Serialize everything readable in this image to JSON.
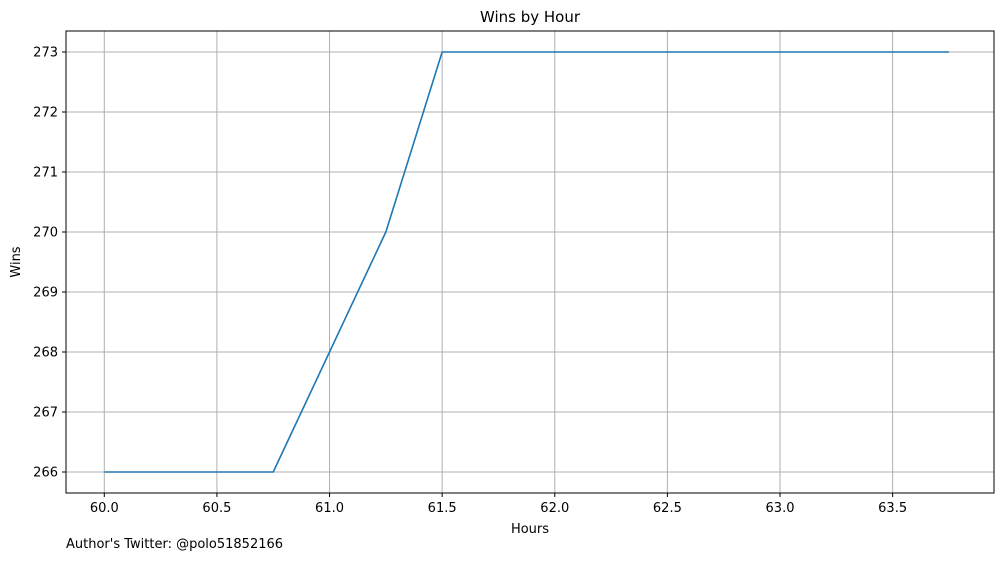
{
  "chart_data": {
    "type": "line",
    "title": "Wins by Hour",
    "xlabel": "Hours",
    "ylabel": "Wins",
    "xlim": [
      59.83,
      63.95
    ],
    "ylim": [
      265.65,
      273.35
    ],
    "xticks": [
      60.0,
      60.5,
      61.0,
      61.5,
      62.0,
      62.5,
      63.0,
      63.5
    ],
    "xtick_labels": [
      "60.0",
      "60.5",
      "61.0",
      "61.5",
      "62.0",
      "62.5",
      "63.0",
      "63.5"
    ],
    "yticks": [
      266,
      267,
      268,
      269,
      270,
      271,
      272,
      273
    ],
    "ytick_labels": [
      "266",
      "267",
      "268",
      "269",
      "270",
      "271",
      "272",
      "273"
    ],
    "grid": true,
    "series": [
      {
        "color": "#1f77b4",
        "x": [
          60.0,
          60.75,
          61.25,
          61.5,
          63.75
        ],
        "y": [
          266,
          266,
          270,
          273,
          273
        ]
      }
    ]
  },
  "footer": {
    "text": "Author's Twitter: @polo51852166"
  }
}
